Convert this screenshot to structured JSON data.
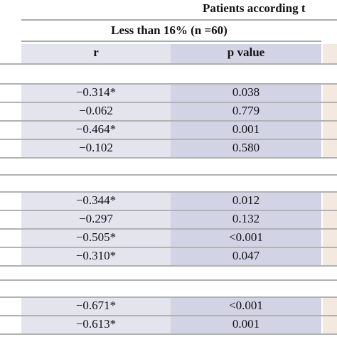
{
  "header": {
    "title": "Patients according t",
    "group": "Less than 16% (n =60)",
    "columns": [
      "r",
      "p value"
    ]
  },
  "table": {
    "groups": [
      {
        "rows": [
          [
            "−0.314*",
            "0.038"
          ],
          [
            "−0.062",
            "0.779"
          ],
          [
            "−0.464*",
            "0.001"
          ],
          [
            "−0.102",
            "0.580"
          ]
        ]
      },
      {
        "rows": [
          [
            "−0.344*",
            "0.012"
          ],
          [
            "−0.297",
            "0.132"
          ],
          [
            "−0.505*",
            "<0.001"
          ],
          [
            "−0.310*",
            "0.047"
          ]
        ]
      },
      {
        "rows": [
          [
            "−0.671*",
            "<0.001"
          ],
          [
            "−0.613*",
            "0.001"
          ]
        ]
      }
    ]
  }
}
